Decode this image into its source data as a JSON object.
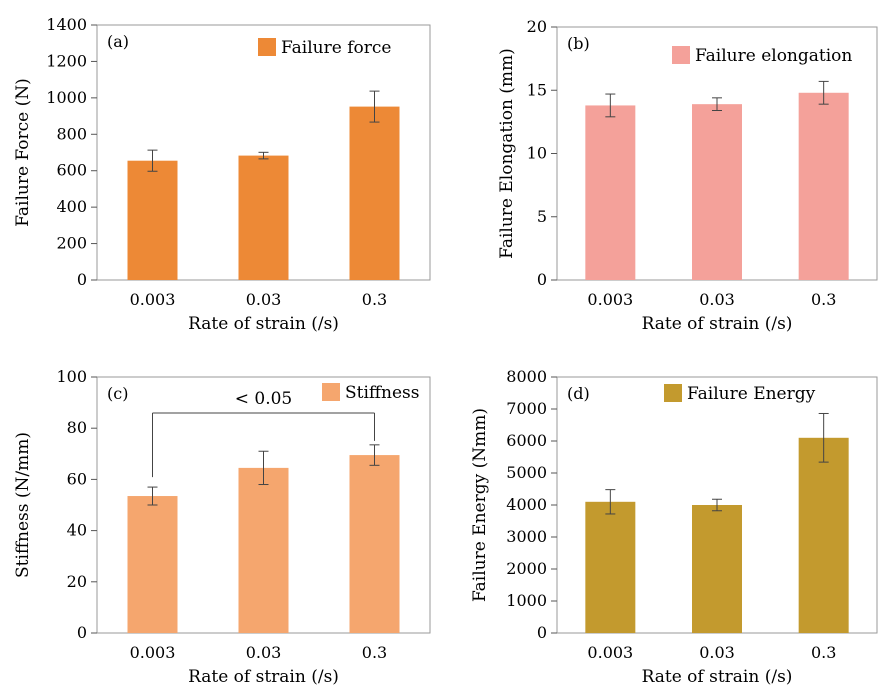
{
  "chart_data": [
    {
      "type": "bar",
      "panel_label": "(a)",
      "categories": [
        "0.003",
        "0.03",
        "0.3"
      ],
      "series": [
        {
          "name": "Failure force",
          "values": [
            655,
            683,
            952
          ],
          "errors": [
            58,
            18,
            85
          ],
          "color": "#ED8936"
        }
      ],
      "xlabel": "Rate of strain (/s)",
      "ylabel": "Failure Force (N)",
      "ylim": [
        0,
        1400
      ],
      "yticks": [
        0,
        200,
        400,
        600,
        800,
        1000,
        1200,
        1400
      ],
      "legend_position": "top-right",
      "grid": false
    },
    {
      "type": "bar",
      "panel_label": "(b)",
      "categories": [
        "0.003",
        "0.03",
        "0.3"
      ],
      "series": [
        {
          "name": "Failure elongation",
          "values": [
            13.8,
            13.9,
            14.8
          ],
          "errors": [
            0.9,
            0.5,
            0.9
          ],
          "color": "#F4A19A"
        }
      ],
      "xlabel": "Rate of strain (/s)",
      "ylabel": "Failure Elongation (mm)",
      "ylim": [
        0,
        20
      ],
      "yticks": [
        0,
        5,
        10,
        15,
        20
      ],
      "legend_position": "top-right",
      "grid": false
    },
    {
      "type": "bar",
      "panel_label": "(c)",
      "categories": [
        "0.003",
        "0.03",
        "0.3"
      ],
      "series": [
        {
          "name": "Stiffness",
          "values": [
            53.5,
            64.5,
            69.5
          ],
          "errors": [
            3.5,
            6.5,
            4
          ],
          "color": "#F5A66E"
        }
      ],
      "xlabel": "Rate of strain (/s)",
      "ylabel": "Stiffness (N/mm)",
      "ylim": [
        0,
        100
      ],
      "yticks": [
        0,
        20,
        40,
        60,
        80,
        100
      ],
      "legend_position": "top-right",
      "grid": false,
      "annotation": {
        "text": "< 0.05",
        "from": "0.003",
        "to": "0.3"
      }
    },
    {
      "type": "bar",
      "panel_label": "(d)",
      "categories": [
        "0.003",
        "0.03",
        "0.3"
      ],
      "series": [
        {
          "name": "Failure Energy",
          "values": [
            4100,
            4000,
            6100
          ],
          "errors": [
            380,
            180,
            760
          ],
          "color": "#C39A2E"
        }
      ],
      "xlabel": "Rate of strain (/s)",
      "ylabel": "Failure Energy (Nmm)",
      "ylim": [
        0,
        8000
      ],
      "yticks": [
        0,
        1000,
        2000,
        3000,
        4000,
        5000,
        6000,
        7000,
        8000
      ],
      "legend_position": "top-center",
      "grid": false
    }
  ]
}
